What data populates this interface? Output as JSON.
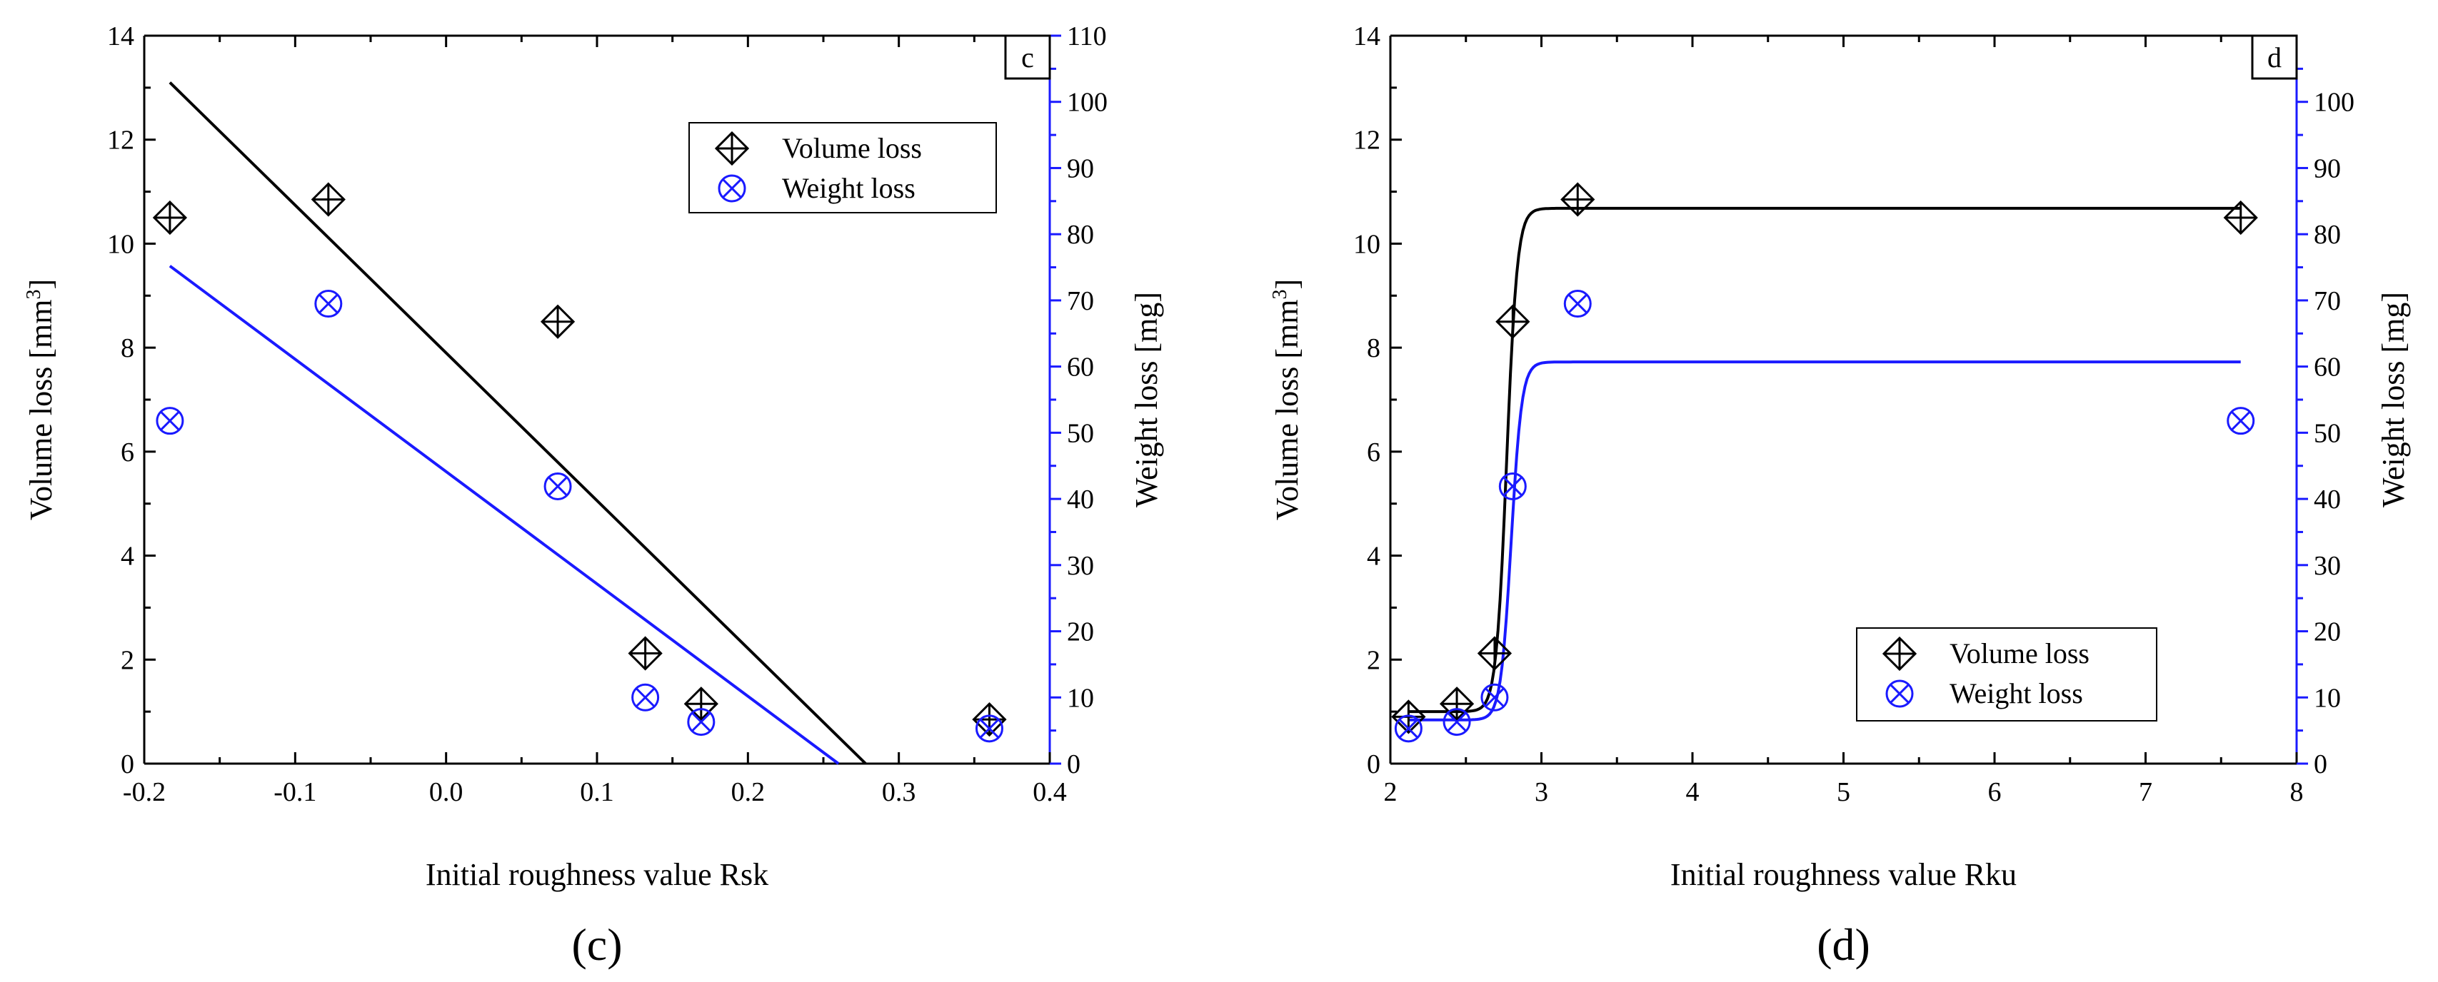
{
  "chart_data": [
    {
      "id": "c",
      "type": "scatter",
      "panel_letter": "c",
      "caption": "(c)",
      "xlabel": "Initial roughness value Rsk",
      "ylabel": "Volume loss [mm",
      "ylabel_sup": "3",
      "ylabel_close": "]",
      "y2label": "Weight loss [mg]",
      "xlim": [
        -0.2,
        0.4
      ],
      "xticks": [
        -0.2,
        -0.1,
        0.0,
        0.1,
        0.2,
        0.3,
        0.4
      ],
      "xtick_labels": [
        "-0.2",
        "-0.1",
        "0.0",
        "0.1",
        "0.2",
        "0.3",
        "0.4"
      ],
      "ylim": [
        0,
        14
      ],
      "yticks": [
        0,
        2,
        4,
        6,
        8,
        10,
        12,
        14
      ],
      "ytick_labels": [
        "0",
        "2",
        "4",
        "6",
        "8",
        "10",
        "12",
        "14"
      ],
      "y2lim": [
        0,
        110
      ],
      "y2ticks": [
        0,
        10,
        20,
        30,
        40,
        50,
        60,
        70,
        80,
        90,
        100,
        110
      ],
      "y2tick_labels": [
        "0",
        "10",
        "20",
        "30",
        "40",
        "50",
        "60",
        "70",
        "80",
        "90",
        "100",
        "110"
      ],
      "legend": {
        "position": "top-right",
        "entries": [
          "Volume loss",
          "Weight loss"
        ]
      },
      "series": [
        {
          "name": "Volume loss",
          "axis": "left",
          "color": "#000000",
          "marker": "diamond-cross",
          "x": [
            -0.183,
            -0.078,
            0.074,
            0.132,
            0.169,
            0.36
          ],
          "y": [
            10.5,
            10.85,
            8.5,
            2.12,
            1.15,
            0.85
          ]
        },
        {
          "name": "Weight loss",
          "axis": "right",
          "color": "#1a1aff",
          "marker": "circle-x",
          "x": [
            -0.183,
            -0.078,
            0.074,
            0.132,
            0.169,
            0.36
          ],
          "y": [
            51.8,
            69.5,
            41.9,
            10.0,
            6.3,
            5.3
          ]
        }
      ],
      "fits": [
        {
          "name": "Volume loss fit",
          "axis": "left",
          "color": "#000000",
          "x": [
            -0.183,
            0.278
          ],
          "y": [
            13.1,
            0
          ]
        },
        {
          "name": "Weight loss fit",
          "axis": "right",
          "color": "#1a1aff",
          "x": [
            -0.183,
            0.26
          ],
          "y": [
            75.2,
            0
          ]
        }
      ]
    },
    {
      "id": "d",
      "type": "scatter",
      "panel_letter": "d",
      "caption": "(d)",
      "xlabel": "Initial roughness value Rku",
      "ylabel": "Volume loss [mm",
      "ylabel_sup": "3",
      "ylabel_close": "]",
      "y2label": "Weight loss [mg]",
      "xlim": [
        2,
        8
      ],
      "xticks": [
        2,
        3,
        4,
        5,
        6,
        7,
        8
      ],
      "xtick_labels": [
        "2",
        "3",
        "4",
        "5",
        "6",
        "7",
        "8"
      ],
      "ylim": [
        0,
        14
      ],
      "yticks": [
        0,
        2,
        4,
        6,
        8,
        10,
        12,
        14
      ],
      "ytick_labels": [
        "0",
        "2",
        "4",
        "6",
        "8",
        "10",
        "12",
        "14"
      ],
      "y2lim": [
        0,
        110
      ],
      "y2ticks": [
        0,
        10,
        20,
        30,
        40,
        50,
        60,
        70,
        80,
        90,
        100
      ],
      "y2tick_labels": [
        "0",
        "10",
        "20",
        "30",
        "40",
        "50",
        "60",
        "70",
        "80",
        "90",
        "100"
      ],
      "legend": {
        "position": "bottom-right",
        "entries": [
          "Volume loss",
          "Weight loss"
        ]
      },
      "series": [
        {
          "name": "Volume loss",
          "axis": "left",
          "color": "#000000",
          "marker": "diamond-cross",
          "x": [
            2.12,
            2.44,
            2.69,
            2.81,
            3.24,
            7.63
          ],
          "y": [
            0.9,
            1.15,
            2.12,
            8.5,
            10.85,
            10.5
          ]
        },
        {
          "name": "Weight loss",
          "axis": "right",
          "color": "#1a1aff",
          "marker": "circle-x",
          "x": [
            2.12,
            2.44,
            2.69,
            2.81,
            3.24,
            7.63
          ],
          "y": [
            5.3,
            6.3,
            10.0,
            41.9,
            69.5,
            51.8
          ]
        }
      ],
      "fits": [
        {
          "name": "Volume loss fit",
          "axis": "left",
          "color": "#000000",
          "model": "sigmoid",
          "x_range": [
            2.12,
            7.63
          ],
          "low": 1.0,
          "high": 10.68,
          "center": 2.77,
          "width": 0.035
        },
        {
          "name": "Weight loss fit",
          "axis": "right",
          "color": "#1a1aff",
          "model": "sigmoid",
          "x_range": [
            2.12,
            7.63
          ],
          "low": 6.6,
          "high": 60.7,
          "center": 2.8,
          "width": 0.035
        }
      ]
    }
  ]
}
